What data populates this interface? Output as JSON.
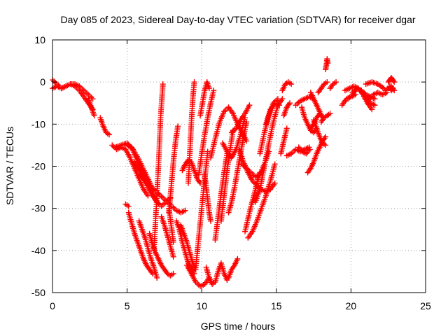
{
  "chart_data": {
    "type": "scatter",
    "title": "Day 085 of 2023, Sidereal Day-to-day VTEC variation (SDTVAR) for receiver dgar",
    "xlabel": "GPS time / hours",
    "ylabel": "SDTVAR / TECUs",
    "xlim": [
      0,
      25
    ],
    "ylim": [
      -50,
      10
    ],
    "xticks": [
      "0",
      "5",
      "10",
      "15",
      "20",
      "25"
    ],
    "yticks": [
      "10",
      "0",
      "-10",
      "-20",
      "-30",
      "-40",
      "-50"
    ],
    "grid": true,
    "marker": "+",
    "color": "#ff0000",
    "series": [
      {
        "x": [
          0.0,
          0.3,
          0.6,
          0.9,
          1.2,
          1.5,
          1.8,
          2.1,
          2.4,
          2.7
        ],
        "y": [
          0.5,
          -0.5,
          -1.5,
          -1.0,
          -0.5,
          -1.0,
          -2.0,
          -3.5,
          -5.0,
          -6.5
        ]
      },
      {
        "x": [
          0.0,
          0.3,
          0.6,
          0.9
        ],
        "y": [
          -1.5,
          -1.0,
          -1.5,
          -1.0
        ]
      },
      {
        "x": [
          1.2,
          1.5,
          1.8,
          2.1,
          2.4,
          2.7
        ],
        "y": [
          -0.5,
          -0.5,
          -1.0,
          -2.0,
          -3.0,
          -4.0
        ]
      },
      {
        "x": [
          2.4,
          2.6,
          2.8
        ],
        "y": [
          -4.0,
          -6.0,
          -8.0
        ]
      },
      {
        "x": [
          3.2,
          3.4,
          3.6,
          3.8
        ],
        "y": [
          -8.5,
          -10.5,
          -12.0,
          -12.5
        ]
      },
      {
        "x": [
          4.0,
          4.3,
          4.6,
          4.9,
          5.2,
          5.5,
          5.8,
          6.1,
          6.4
        ],
        "y": [
          -15.0,
          -16.0,
          -15.5,
          -16.0,
          -18.0,
          -20.5,
          -23.0,
          -25.5,
          -27.0
        ]
      },
      {
        "x": [
          4.2,
          4.6,
          5.0,
          5.4,
          5.8,
          6.2,
          6.6
        ],
        "y": [
          -15.5,
          -15.0,
          -14.5,
          -16.0,
          -18.5,
          -21.5,
          -24.5
        ]
      },
      {
        "x": [
          5.0,
          5.3,
          5.6,
          5.9,
          6.2,
          6.5,
          6.8,
          7.1
        ],
        "y": [
          -15.0,
          -15.5,
          -18.0,
          -20.5,
          -22.0,
          -24.0,
          -27.0,
          -29.0
        ]
      },
      {
        "x": [
          5.5,
          5.8,
          6.1,
          6.4,
          6.7,
          7.0,
          7.3,
          7.6,
          7.9
        ],
        "y": [
          -19.0,
          -21.0,
          -23.0,
          -25.0,
          -27.0,
          -28.5,
          -29.5,
          -28.5,
          -27.5
        ]
      },
      {
        "x": [
          5.9,
          6.2,
          6.5,
          6.8,
          7.1,
          7.4,
          7.7,
          8.0,
          8.3,
          8.6,
          8.9
        ],
        "y": [
          -22.0,
          -23.5,
          -24.5,
          -25.5,
          -26.5,
          -27.5,
          -28.5,
          -29.5,
          -30.5,
          -31.0,
          -30.5
        ]
      },
      {
        "x": [
          4.9,
          5.1
        ],
        "y": [
          -29.0,
          -29.5
        ]
      },
      {
        "x": [
          5.1,
          5.3,
          5.5,
          5.7,
          5.9,
          6.1,
          6.3,
          6.5,
          6.7
        ],
        "y": [
          -31.0,
          -33.5,
          -36.0,
          -38.0,
          -40.0,
          -42.0,
          -43.5,
          -44.5,
          -45.5
        ]
      },
      {
        "x": [
          5.8,
          6.0,
          6.2,
          6.4,
          6.6,
          6.8,
          7.0
        ],
        "y": [
          -33.0,
          -35.0,
          -37.0,
          -39.5,
          -42.0,
          -44.0,
          -46.5
        ]
      },
      {
        "x": [
          6.5,
          6.7,
          6.9,
          7.1,
          7.3,
          7.5,
          7.7,
          7.9,
          8.1
        ],
        "y": [
          -36.0,
          -38.5,
          -40.5,
          -42.0,
          -43.5,
          -44.5,
          -45.5,
          -46.0,
          -45.5
        ]
      },
      {
        "x": [
          6.8,
          6.95,
          7.1,
          7.25,
          7.4
        ],
        "y": [
          -40.0,
          -30.0,
          -20.0,
          -8.0,
          -0.5
        ]
      },
      {
        "x": [
          7.3,
          7.5,
          7.7,
          7.9,
          8.1
        ],
        "y": [
          -32.0,
          -34.0,
          -36.5,
          -39.0,
          -41.5
        ]
      },
      {
        "x": [
          7.8,
          7.95,
          8.1,
          8.25,
          8.4
        ],
        "y": [
          -31.0,
          -25.0,
          -19.0,
          -14.0,
          -10.5
        ]
      },
      {
        "x": [
          7.8,
          7.95,
          8.1
        ],
        "y": [
          -30.0,
          -34.0,
          -38.0
        ]
      },
      {
        "x": [
          8.3,
          8.5,
          8.7,
          8.9,
          9.1,
          9.3,
          9.5
        ],
        "y": [
          -33.0,
          -35.0,
          -38.0,
          -40.5,
          -43.0,
          -44.0,
          -45.5
        ]
      },
      {
        "x": [
          8.6,
          8.8,
          9.0,
          9.2,
          9.4,
          9.6
        ],
        "y": [
          -34.0,
          -36.0,
          -38.0,
          -40.5,
          -43.0,
          -44.5
        ]
      },
      {
        "x": [
          8.7,
          8.9,
          9.1,
          9.3,
          9.5,
          9.7,
          9.9
        ],
        "y": [
          -21.0,
          -19.5,
          -18.5,
          -19.0,
          -21.0,
          -23.0,
          -24.0
        ]
      },
      {
        "x": [
          9.1,
          9.2,
          9.3,
          9.4,
          9.5
        ],
        "y": [
          -24.0,
          -17.0,
          -10.0,
          -4.0,
          0.0
        ]
      },
      {
        "x": [
          9.0,
          9.3,
          9.6,
          9.9,
          10.2,
          10.5
        ],
        "y": [
          -43.5,
          -45.5,
          -47.5,
          -48.5,
          -48.0,
          -46.5
        ]
      },
      {
        "x": [
          9.6,
          9.8,
          10.0,
          10.2,
          10.4
        ],
        "y": [
          -44.0,
          -37.0,
          -30.0,
          -23.0,
          -16.5
        ]
      },
      {
        "x": [
          9.8,
          10.0,
          10.2,
          10.4,
          10.6,
          10.8
        ],
        "y": [
          -22.0,
          -17.0,
          -12.5,
          -8.5,
          -5.0,
          -2.0
        ]
      },
      {
        "x": [
          9.9,
          10.05,
          10.2,
          10.35,
          10.5
        ],
        "y": [
          -8.0,
          -5.0,
          -2.0,
          0.0,
          -1.5
        ]
      },
      {
        "x": [
          10.2,
          10.3,
          10.4,
          10.5,
          10.6
        ],
        "y": [
          -22.0,
          -25.0,
          -28.0,
          -31.0,
          -33.0
        ]
      },
      {
        "x": [
          10.3,
          10.5,
          10.7,
          10.9,
          11.1,
          11.3,
          11.5,
          11.7
        ],
        "y": [
          -44.0,
          -46.5,
          -48.0,
          -47.5,
          -45.0,
          -43.0,
          -45.5,
          -47.0
        ]
      },
      {
        "x": [
          10.9,
          11.1,
          11.3,
          11.5,
          11.7
        ],
        "y": [
          -37.5,
          -32.0,
          -26.5,
          -21.5,
          -17.0
        ]
      },
      {
        "x": [
          11.3,
          11.5,
          11.7,
          11.9,
          12.1
        ],
        "y": [
          -33.0,
          -27.0,
          -21.0,
          -16.0,
          -11.5
        ]
      },
      {
        "x": [
          11.8,
          12.0,
          12.2,
          12.4
        ],
        "y": [
          -46.5,
          -44.5,
          -43.5,
          -42.0
        ]
      },
      {
        "x": [
          10.6,
          10.9,
          11.2,
          11.5,
          11.8,
          12.1,
          12.4,
          12.7,
          13.0
        ],
        "y": [
          -18.0,
          -13.5,
          -9.5,
          -7.0,
          -6.0,
          -7.5,
          -10.0,
          -12.0,
          -14.0
        ]
      },
      {
        "x": [
          11.4,
          11.7,
          12.0,
          12.3,
          12.6,
          12.9
        ],
        "y": [
          -14.5,
          -16.5,
          -18.0,
          -16.0,
          -12.5,
          -8.5
        ]
      },
      {
        "x": [
          11.8,
          12.0,
          12.2,
          12.4,
          12.6,
          12.8,
          13.0
        ],
        "y": [
          -31.0,
          -28.5,
          -25.0,
          -21.0,
          -17.0,
          -13.0,
          -9.5
        ]
      },
      {
        "x": [
          12.0,
          12.3,
          12.6,
          12.9,
          13.2
        ],
        "y": [
          -12.0,
          -11.0,
          -9.0,
          -7.5,
          -5.5
        ]
      },
      {
        "x": [
          12.5,
          12.8,
          13.1,
          13.4,
          13.7,
          14.0,
          14.3,
          14.6,
          14.9
        ],
        "y": [
          -16.0,
          -19.0,
          -21.5,
          -23.5,
          -24.5,
          -25.5,
          -26.0,
          -25.5,
          -24.0
        ]
      },
      {
        "x": [
          12.7,
          13.0,
          13.3,
          13.6,
          13.9,
          14.2,
          14.5
        ],
        "y": [
          -19.5,
          -20.5,
          -21.5,
          -22.5,
          -22.0,
          -19.5,
          -16.5
        ]
      },
      {
        "x": [
          12.9,
          13.1,
          13.3,
          13.5,
          13.7,
          13.9
        ],
        "y": [
          -35.5,
          -32.5,
          -29.5,
          -27.0,
          -24.0,
          -21.5
        ]
      },
      {
        "x": [
          13.1,
          13.4,
          13.7,
          14.0,
          14.3,
          14.6,
          14.9
        ],
        "y": [
          -37.0,
          -35.5,
          -33.0,
          -30.0,
          -27.0,
          -23.5,
          -19.5
        ]
      },
      {
        "x": [
          13.6,
          13.9,
          14.2,
          14.5,
          14.8,
          15.1,
          15.4
        ],
        "y": [
          -28.5,
          -25.5,
          -20.0,
          -14.5,
          -9.5,
          -5.5,
          -4.0
        ]
      },
      {
        "x": [
          13.9,
          14.2,
          14.5,
          14.8,
          15.1
        ],
        "y": [
          -17.0,
          -12.0,
          -8.0,
          -5.0,
          -4.0
        ]
      },
      {
        "x": [
          14.3,
          14.6,
          14.9,
          15.2
        ],
        "y": [
          -10.0,
          -6.5,
          -5.0,
          -5.5
        ]
      },
      {
        "x": [
          15.3,
          15.5,
          15.7
        ],
        "y": [
          -17.0,
          -14.0,
          -11.0
        ]
      },
      {
        "x": [
          15.5,
          15.7,
          15.9
        ],
        "y": [
          -8.0,
          -6.0,
          -5.0
        ]
      },
      {
        "x": [
          15.4,
          15.6,
          15.8,
          16.0
        ],
        "y": [
          -2.0,
          -0.5,
          0.0,
          -0.5
        ]
      },
      {
        "x": [
          15.7,
          16.0,
          16.3,
          16.6,
          16.9,
          17.2
        ],
        "y": [
          -17.5,
          -17.0,
          -16.0,
          -16.5,
          -16.0,
          -15.5
        ]
      },
      {
        "x": [
          16.3,
          16.6,
          16.9,
          17.2,
          17.5
        ],
        "y": [
          -5.5,
          -4.5,
          -4.0,
          -3.5,
          -4.0
        ]
      },
      {
        "x": [
          16.5,
          16.75,
          17.0,
          17.25
        ],
        "y": [
          -15.5,
          -16.5,
          -17.0,
          -16.0
        ]
      },
      {
        "x": [
          16.7,
          16.9,
          17.1,
          17.3,
          17.5,
          17.7
        ],
        "y": [
          -6.0,
          -8.5,
          -10.0,
          -11.5,
          -12.0,
          -11.0
        ]
      },
      {
        "x": [
          17.1,
          17.3,
          17.5,
          17.7,
          17.9
        ],
        "y": [
          -21.5,
          -20.5,
          -19.0,
          -17.0,
          -15.5
        ]
      },
      {
        "x": [
          17.3,
          17.5,
          17.7,
          17.9,
          18.1
        ],
        "y": [
          -2.5,
          -4.0,
          -5.5,
          -7.0,
          -8.5
        ]
      },
      {
        "x": [
          17.3,
          17.5,
          17.7,
          17.9
        ],
        "y": [
          -11.0,
          -10.0,
          -8.5,
          -7.5
        ]
      },
      {
        "x": [
          17.5,
          17.7,
          17.9,
          18.1,
          18.3
        ],
        "y": [
          -9.0,
          -11.0,
          -13.0,
          -14.5,
          -15.0
        ]
      },
      {
        "x": [
          17.9,
          18.1,
          18.3
        ],
        "y": [
          -15.5,
          -14.0,
          -13.0
        ]
      },
      {
        "x": [
          17.8,
          18.0,
          18.2,
          18.4
        ],
        "y": [
          -2.5,
          -1.5,
          -0.5,
          0.0
        ]
      },
      {
        "x": [
          18.0,
          18.2,
          18.4,
          18.6
        ],
        "y": [
          -9.5,
          -8.5,
          -8.0,
          -7.5
        ]
      },
      {
        "x": [
          18.3,
          18.35,
          18.4,
          18.45
        ],
        "y": [
          3.0,
          4.0,
          5.5,
          4.5
        ]
      },
      {
        "x": [
          18.6,
          18.8,
          19.0
        ],
        "y": [
          -1.5,
          -0.5,
          0.0
        ]
      },
      {
        "x": [
          19.4,
          19.7,
          20.0,
          20.3
        ],
        "y": [
          -5.5,
          -4.0,
          -3.5,
          -3.0
        ]
      },
      {
        "x": [
          19.6,
          19.9,
          20.2,
          20.5,
          20.8,
          21.1,
          21.4
        ],
        "y": [
          -2.0,
          -1.5,
          -1.0,
          -1.5,
          -3.0,
          -5.0,
          -6.5
        ]
      },
      {
        "x": [
          19.8,
          20.1,
          20.4,
          20.7,
          21.0,
          21.3,
          21.6
        ],
        "y": [
          -4.0,
          -3.0,
          -1.5,
          -2.0,
          -3.5,
          -5.0,
          -5.5
        ]
      },
      {
        "x": [
          20.1,
          20.4,
          20.7,
          21.0,
          21.3,
          21.6
        ],
        "y": [
          -2.5,
          -1.5,
          -2.0,
          -3.0,
          -3.5,
          -4.0
        ]
      },
      {
        "x": [
          21.2,
          21.5,
          21.8,
          22.1,
          22.4
        ],
        "y": [
          -4.0,
          -3.0,
          -2.5,
          -3.0,
          -2.5
        ]
      },
      {
        "x": [
          21.0,
          21.4,
          21.8,
          22.2
        ],
        "y": [
          -0.5,
          0.0,
          -0.5,
          -1.5
        ]
      },
      {
        "x": [
          22.3,
          22.5,
          22.7,
          22.9
        ],
        "y": [
          -2.0,
          -1.5,
          -1.0,
          -2.0
        ]
      },
      {
        "x": [
          22.5,
          22.6,
          22.7,
          22.8,
          22.9
        ],
        "y": [
          0.0,
          0.5,
          1.0,
          0.5,
          0.0
        ]
      },
      {
        "x": [
          22.6,
          22.7,
          22.8
        ],
        "y": [
          -1.0,
          -2.0,
          -1.5
        ]
      }
    ]
  }
}
